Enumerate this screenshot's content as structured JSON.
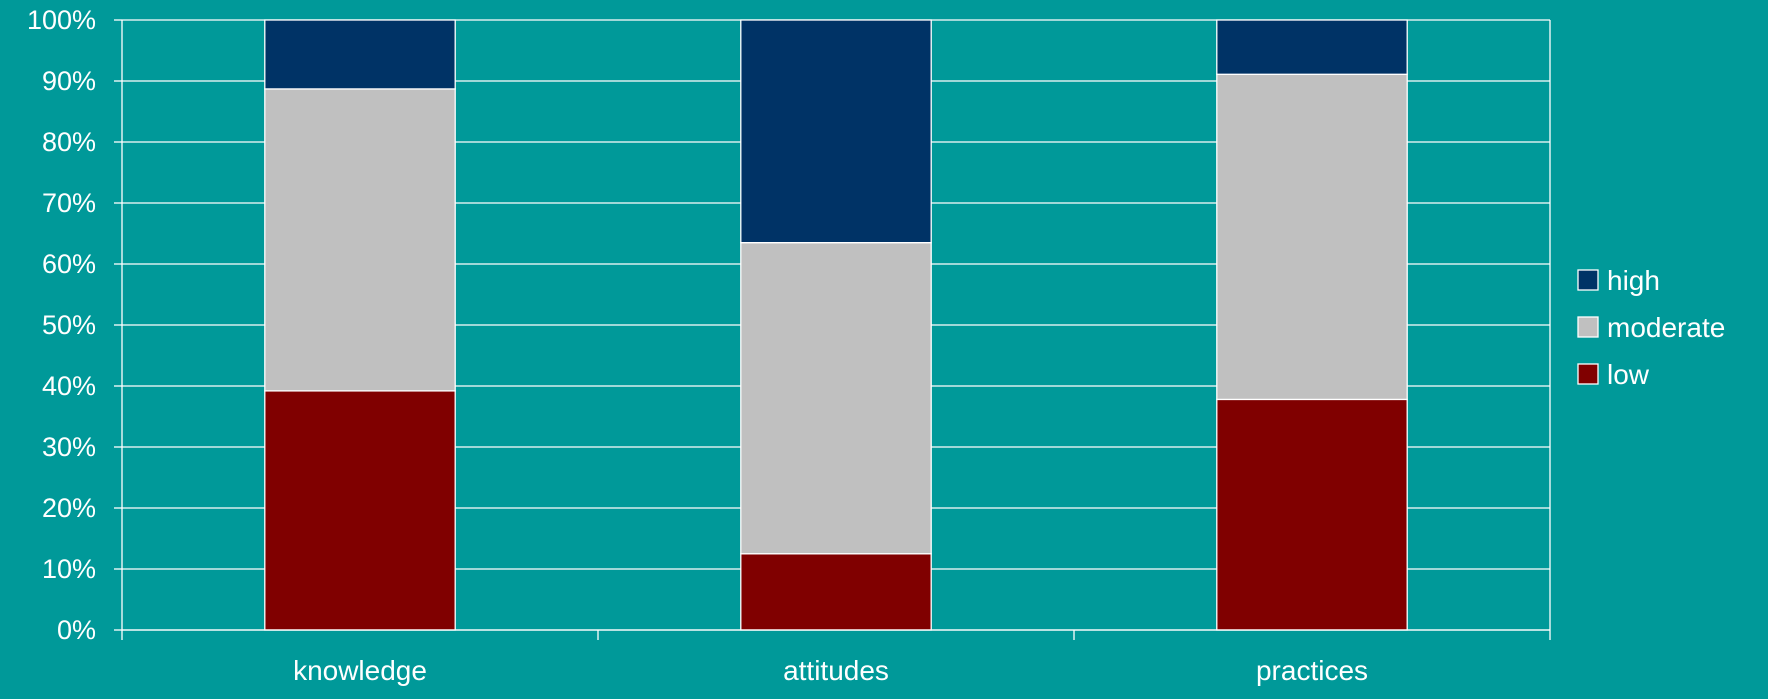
{
  "chart_data": {
    "type": "bar",
    "stacked": true,
    "percent_stacked": true,
    "categories": [
      "knowledge",
      "attitudes",
      "practices"
    ],
    "series": [
      {
        "name": "low",
        "values": [
          39.2,
          12.5,
          37.8
        ]
      },
      {
        "name": "moderate",
        "values": [
          49.5,
          51.0,
          53.3
        ]
      },
      {
        "name": "high",
        "values": [
          11.3,
          36.5,
          8.9
        ]
      }
    ],
    "y_ticks": [
      "0%",
      "10%",
      "20%",
      "30%",
      "40%",
      "50%",
      "60%",
      "70%",
      "80%",
      "90%",
      "100%"
    ],
    "ylim": [
      0,
      100
    ],
    "title": "",
    "xlabel": "",
    "ylabel": "",
    "grid": true,
    "legend_position": "right",
    "legend_order": [
      "high",
      "moderate",
      "low"
    ]
  },
  "colors": {
    "background": "#009999",
    "grid": "#ffffff",
    "low": "#800000",
    "moderate": "#C0C0C0",
    "high": "#003366",
    "text": "#ffffff"
  }
}
